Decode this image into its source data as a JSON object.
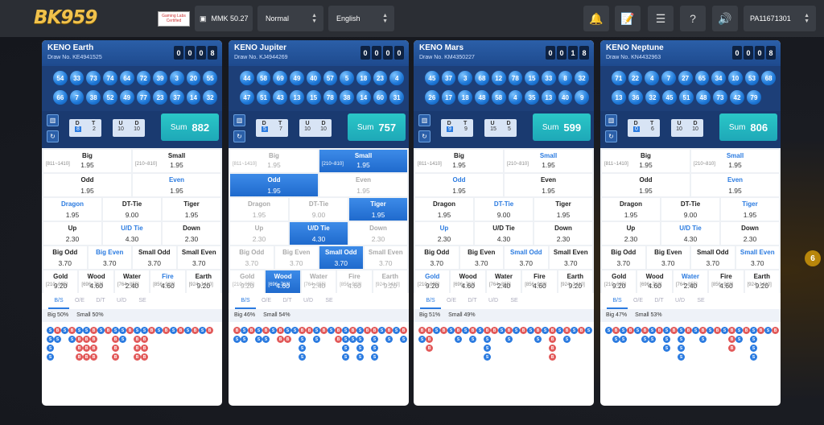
{
  "header": {
    "logo": "BK959",
    "badge": "Gaming Labs Certified",
    "wallet": "MMK 50.27",
    "mode": "Normal",
    "language": "English",
    "user": "PA11671301"
  },
  "side_badge": "6",
  "panels": [
    {
      "name": "KENO Earth",
      "draw": "Draw No. KE4941525",
      "timer": [
        "0",
        "0",
        "0",
        "8"
      ],
      "balls": [
        [
          "54",
          "33",
          "73",
          "74",
          "64",
          "72",
          "39",
          "3",
          "20",
          "55"
        ],
        [
          "66",
          "7",
          "38",
          "52",
          "49",
          "77",
          "23",
          "37",
          "14",
          "32"
        ]
      ],
      "dt": {
        "d": "D",
        "t": "T",
        "dv": "8",
        "tv": "2"
      },
      "ud": {
        "u": "U",
        "d": "D",
        "uv": "10",
        "dv": "10"
      },
      "sum_label": "Sum",
      "sum": "882",
      "rows": [
        [
          {
            "t": "Big",
            "r": "[811~1410]",
            "o": "1.95"
          },
          {
            "t": "Small",
            "r": "[210~810]",
            "o": "1.95"
          }
        ],
        [
          {
            "t": "Odd",
            "o": "1.95"
          },
          {
            "t": "Even",
            "o": "1.95",
            "blue": true
          }
        ],
        [
          {
            "t": "Dragon",
            "o": "1.95",
            "blue": true
          },
          {
            "t": "DT-Tie",
            "o": "9.00"
          },
          {
            "t": "Tiger",
            "o": "1.95"
          }
        ],
        [
          {
            "t": "Up",
            "o": "2.30"
          },
          {
            "t": "U/D Tie",
            "o": "4.30",
            "blue": true
          },
          {
            "t": "Down",
            "o": "2.30"
          }
        ],
        [
          {
            "t": "Big Odd",
            "o": "3.70"
          },
          {
            "t": "Big Even",
            "o": "3.70",
            "blue": true
          },
          {
            "t": "Small Odd",
            "o": "3.70"
          },
          {
            "t": "Small Even",
            "o": "3.70"
          }
        ],
        [
          {
            "t": "Gold",
            "r": "[210~695]",
            "o": "9.20"
          },
          {
            "t": "Wood",
            "r": "[696~763]",
            "o": "4.60"
          },
          {
            "t": "Water",
            "r": "[764~855]",
            "o": "2.40"
          },
          {
            "t": "Fire",
            "r": "[856~923]",
            "o": "4.60",
            "blue": true
          },
          {
            "t": "Earth",
            "r": "[924~1410]",
            "o": "9.20"
          }
        ]
      ],
      "big": "Big 50%",
      "small": "Small 50%"
    },
    {
      "name": "KENO Jupiter",
      "draw": "Draw No. KJ4944269",
      "timer": [
        "0",
        "0",
        "0",
        "0"
      ],
      "balls": [
        [
          "44",
          "58",
          "69",
          "49",
          "40",
          "57",
          "5",
          "18",
          "23",
          "4"
        ],
        [
          "47",
          "51",
          "43",
          "13",
          "15",
          "78",
          "38",
          "14",
          "60",
          "31"
        ]
      ],
      "dt": {
        "d": "D",
        "t": "T",
        "dv": "5",
        "tv": "7"
      },
      "ud": {
        "u": "U",
        "d": "D",
        "uv": "10",
        "dv": "10"
      },
      "sum_label": "Sum",
      "sum": "757",
      "rows": [
        [
          {
            "t": "Big",
            "r": "[811~1410]",
            "o": "1.95",
            "dim": true
          },
          {
            "t": "Small",
            "r": "[210~810]",
            "o": "1.95",
            "active": true
          }
        ],
        [
          {
            "t": "Odd",
            "o": "1.95",
            "active": true
          },
          {
            "t": "Even",
            "o": "1.95",
            "dim": true
          }
        ],
        [
          {
            "t": "Dragon",
            "o": "1.95",
            "dim": true
          },
          {
            "t": "DT-Tie",
            "o": "9.00",
            "dim": true
          },
          {
            "t": "Tiger",
            "o": "1.95",
            "active": true
          }
        ],
        [
          {
            "t": "Up",
            "o": "2.30",
            "dim": true
          },
          {
            "t": "U/D Tie",
            "o": "4.30",
            "active": true
          },
          {
            "t": "Down",
            "o": "2.30",
            "dim": true
          }
        ],
        [
          {
            "t": "Big Odd",
            "o": "3.70",
            "dim": true
          },
          {
            "t": "Big Even",
            "o": "3.70",
            "dim": true
          },
          {
            "t": "Small Odd",
            "o": "3.70",
            "active": true
          },
          {
            "t": "Small Even",
            "o": "3.70",
            "dim": true
          }
        ],
        [
          {
            "t": "Gold",
            "r": "[210~695]",
            "o": "9.20",
            "dim": true
          },
          {
            "t": "Wood",
            "r": "[696~763]",
            "o": "4.60",
            "active": true
          },
          {
            "t": "Water",
            "r": "[764~855]",
            "o": "2.40",
            "dim": true
          },
          {
            "t": "Fire",
            "r": "[856~923]",
            "o": "4.60",
            "dim": true
          },
          {
            "t": "Earth",
            "r": "[924~1410]",
            "o": "9.20",
            "dim": true
          }
        ]
      ],
      "big": "Big 46%",
      "small": "Small 54%"
    },
    {
      "name": "KENO Mars",
      "draw": "Draw No. KM4350227",
      "timer": [
        "0",
        "0",
        "1",
        "8"
      ],
      "balls": [
        [
          "45",
          "37",
          "3",
          "68",
          "12",
          "78",
          "15",
          "33",
          "8",
          "32"
        ],
        [
          "26",
          "17",
          "18",
          "48",
          "58",
          "4",
          "35",
          "13",
          "40",
          "9"
        ]
      ],
      "dt": {
        "d": "D",
        "t": "T",
        "dv": "9",
        "tv": "9"
      },
      "ud": {
        "u": "U",
        "d": "D",
        "uv": "15",
        "dv": "5"
      },
      "sum_label": "Sum",
      "sum": "599",
      "rows": [
        [
          {
            "t": "Big",
            "r": "[811~1410]",
            "o": "1.95"
          },
          {
            "t": "Small",
            "r": "[210~810]",
            "o": "1.95",
            "blue": true
          }
        ],
        [
          {
            "t": "Odd",
            "o": "1.95",
            "blue": true
          },
          {
            "t": "Even",
            "o": "1.95"
          }
        ],
        [
          {
            "t": "Dragon",
            "o": "1.95"
          },
          {
            "t": "DT-Tie",
            "o": "9.00",
            "blue": true
          },
          {
            "t": "Tiger",
            "o": "1.95"
          }
        ],
        [
          {
            "t": "Up",
            "o": "2.30",
            "blue": true
          },
          {
            "t": "U/D Tie",
            "o": "4.30"
          },
          {
            "t": "Down",
            "o": "2.30"
          }
        ],
        [
          {
            "t": "Big Odd",
            "o": "3.70"
          },
          {
            "t": "Big Even",
            "o": "3.70"
          },
          {
            "t": "Small Odd",
            "o": "3.70",
            "blue": true
          },
          {
            "t": "Small Even",
            "o": "3.70"
          }
        ],
        [
          {
            "t": "Gold",
            "r": "[210~695]",
            "o": "9.20",
            "blue": true
          },
          {
            "t": "Wood",
            "r": "[696~763]",
            "o": "4.60"
          },
          {
            "t": "Water",
            "r": "[764~855]",
            "o": "2.40"
          },
          {
            "t": "Fire",
            "r": "[856~923]",
            "o": "4.60"
          },
          {
            "t": "Earth",
            "r": "[924~1410]",
            "o": "9.20"
          }
        ]
      ],
      "big": "Big 51%",
      "small": "Small 49%"
    },
    {
      "name": "KENO Neptune",
      "draw": "Draw No. KN4432963",
      "timer": [
        "0",
        "0",
        "0",
        "8"
      ],
      "balls": [
        [
          "71",
          "22",
          "4",
          "7",
          "27",
          "65",
          "34",
          "10",
          "53",
          "68"
        ],
        [
          "13",
          "36",
          "32",
          "45",
          "51",
          "48",
          "73",
          "42",
          "79",
          ""
        ]
      ],
      "dt": {
        "d": "D",
        "t": "T",
        "dv": "0",
        "tv": "6"
      },
      "ud": {
        "u": "U",
        "d": "D",
        "uv": "10",
        "dv": "10"
      },
      "sum_label": "Sum",
      "sum": "806",
      "rows": [
        [
          {
            "t": "Big",
            "r": "[811~1410]",
            "o": "1.95"
          },
          {
            "t": "Small",
            "r": "[210~810]",
            "o": "1.95",
            "blue": true
          }
        ],
        [
          {
            "t": "Odd",
            "o": "1.95"
          },
          {
            "t": "Even",
            "o": "1.95",
            "blue": true
          }
        ],
        [
          {
            "t": "Dragon",
            "o": "1.95"
          },
          {
            "t": "DT-Tie",
            "o": "9.00"
          },
          {
            "t": "Tiger",
            "o": "1.95",
            "blue": true
          }
        ],
        [
          {
            "t": "Up",
            "o": "2.30"
          },
          {
            "t": "U/D Tie",
            "o": "4.30",
            "blue": true
          },
          {
            "t": "Down",
            "o": "2.30"
          }
        ],
        [
          {
            "t": "Big Odd",
            "o": "3.70"
          },
          {
            "t": "Big Even",
            "o": "3.70"
          },
          {
            "t": "Small Odd",
            "o": "3.70"
          },
          {
            "t": "Small Even",
            "o": "3.70",
            "blue": true
          }
        ],
        [
          {
            "t": "Gold",
            "r": "[210~695]",
            "o": "9.20"
          },
          {
            "t": "Wood",
            "r": "[696~763]",
            "o": "4.60"
          },
          {
            "t": "Water",
            "r": "[764~855]",
            "o": "2.40",
            "blue": true
          },
          {
            "t": "Fire",
            "r": "[856~923]",
            "o": "4.60"
          },
          {
            "t": "Earth",
            "r": "[924~1410]",
            "o": "9.20"
          }
        ]
      ],
      "big": "Big 47%",
      "small": "Small 53%"
    }
  ],
  "tabs": [
    "B/S",
    "O/E",
    "D/T",
    "U/D",
    "SE"
  ],
  "roads": [
    [
      [
        "S",
        "S",
        "S",
        "S"
      ],
      [
        "B",
        "S"
      ],
      [
        "S"
      ],
      [
        "B",
        "S"
      ],
      [
        "S",
        "B",
        "B",
        "B"
      ],
      [
        "S",
        "B",
        "B",
        "B"
      ],
      [
        "B",
        "B",
        "B",
        "B"
      ],
      [
        "S"
      ],
      [
        "B"
      ],
      [
        "S",
        "B",
        "B",
        "B"
      ],
      [
        "S",
        "S"
      ],
      [
        "B"
      ],
      [
        "S",
        "B",
        "B",
        "B"
      ],
      [
        "S",
        "B",
        "B",
        "B"
      ],
      [
        "B"
      ],
      [
        "S"
      ],
      [
        "B"
      ],
      [
        "S"
      ],
      [
        "B"
      ],
      [
        "S"
      ],
      [
        "B"
      ],
      [
        "S"
      ],
      [
        "B"
      ]
    ],
    [
      [
        "B",
        "S"
      ],
      [
        "S",
        "S"
      ],
      [
        "B"
      ],
      [
        "S",
        "S"
      ],
      [
        "B",
        "S"
      ],
      [
        "S"
      ],
      [
        "B",
        "B"
      ],
      [
        "S",
        "B"
      ],
      [
        "S"
      ],
      [
        "B",
        "S",
        "S",
        "S"
      ],
      [
        "B"
      ],
      [
        "S",
        "S"
      ],
      [
        "B"
      ],
      [
        "S"
      ],
      [
        "B",
        "B"
      ],
      [
        "S",
        "S",
        "S",
        "S"
      ],
      [
        "B",
        "S"
      ],
      [
        "S",
        "S",
        "S",
        "S"
      ],
      [
        "B"
      ],
      [
        "B",
        "S",
        "S",
        "S"
      ],
      [
        "S"
      ],
      [
        "B",
        "S"
      ],
      [
        "S"
      ],
      [
        "B",
        "S"
      ]
    ],
    [
      [
        "B",
        "S"
      ],
      [
        "B",
        "B",
        "B"
      ],
      [
        "S"
      ],
      [
        "B"
      ],
      [
        "S"
      ],
      [
        "B",
        "S"
      ],
      [
        "S"
      ],
      [
        "B",
        "S"
      ],
      [
        "S"
      ],
      [
        "B",
        "S",
        "S",
        "S"
      ],
      [
        "B"
      ],
      [
        "S"
      ],
      [
        "B",
        "S"
      ],
      [
        "S"
      ],
      [
        "B"
      ],
      [
        "S"
      ],
      [
        "B",
        "S"
      ],
      [
        "S"
      ],
      [
        "B",
        "B",
        "B",
        "B"
      ],
      [
        "S"
      ],
      [
        "B",
        "S"
      ],
      [
        "S"
      ],
      [
        "B"
      ],
      [
        "S"
      ]
    ],
    [
      [
        "S"
      ],
      [
        "B",
        "S"
      ],
      [
        "S",
        "S"
      ],
      [
        "B"
      ],
      [
        "S"
      ],
      [
        "B",
        "S"
      ],
      [
        "S",
        "S"
      ],
      [
        "B"
      ],
      [
        "S",
        "S",
        "S"
      ],
      [
        "B"
      ],
      [
        "S",
        "S",
        "S",
        "S"
      ],
      [
        "B"
      ],
      [
        "S"
      ],
      [
        "B",
        "S"
      ],
      [
        "S"
      ],
      [
        "B"
      ],
      [
        "S"
      ],
      [
        "B",
        "B",
        "B"
      ],
      [
        "S",
        "S"
      ],
      [
        "B"
      ],
      [
        "S",
        "S",
        "S",
        "S"
      ],
      [
        "B"
      ],
      [
        "S"
      ],
      [
        "B"
      ]
    ]
  ]
}
